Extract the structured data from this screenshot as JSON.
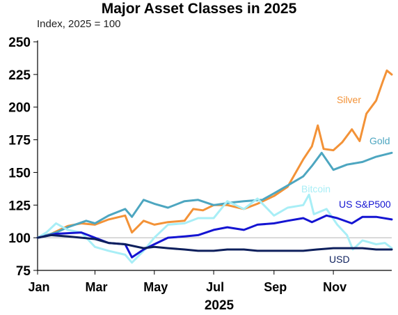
{
  "chart_data": {
    "type": "line",
    "title": "Major Asset Classes in 2025",
    "subtitle": "Index, 2025 = 100",
    "xlabel": "2025",
    "ylabel": "",
    "ylim": [
      75,
      250
    ],
    "yticks": [
      75,
      100,
      125,
      150,
      175,
      200,
      225,
      250
    ],
    "xlim": [
      "2025-01-01",
      "2025-12-31"
    ],
    "xtick_labels": [
      {
        "date": "2025-01-01",
        "label": "Jan"
      },
      {
        "date": "2025-03-01",
        "label": "Mar"
      },
      {
        "date": "2025-05-01",
        "label": "May"
      },
      {
        "date": "2025-07-01",
        "label": "Jul"
      },
      {
        "date": "2025-09-01",
        "label": "Sep"
      },
      {
        "date": "2025-11-01",
        "label": "Nov"
      }
    ],
    "reference_line": 100,
    "grid": false,
    "legend": "inline labels",
    "series": [
      {
        "name": "Silver",
        "color": "#F39237",
        "points": [
          [
            "2025-01-01",
            100
          ],
          [
            "2025-01-15",
            103
          ],
          [
            "2025-02-01",
            109
          ],
          [
            "2025-02-15",
            111
          ],
          [
            "2025-03-01",
            110
          ],
          [
            "2025-03-15",
            114
          ],
          [
            "2025-04-01",
            117
          ],
          [
            "2025-04-08",
            104
          ],
          [
            "2025-04-20",
            113
          ],
          [
            "2025-05-01",
            110
          ],
          [
            "2025-05-15",
            112
          ],
          [
            "2025-06-01",
            113
          ],
          [
            "2025-06-10",
            122
          ],
          [
            "2025-06-20",
            121
          ],
          [
            "2025-07-01",
            125
          ],
          [
            "2025-07-15",
            125
          ],
          [
            "2025-08-01",
            122
          ],
          [
            "2025-08-15",
            126
          ],
          [
            "2025-09-01",
            132
          ],
          [
            "2025-09-15",
            139
          ],
          [
            "2025-10-01",
            160
          ],
          [
            "2025-10-10",
            170
          ],
          [
            "2025-10-16",
            186
          ],
          [
            "2025-10-22",
            168
          ],
          [
            "2025-11-01",
            167
          ],
          [
            "2025-11-10",
            173
          ],
          [
            "2025-11-20",
            183
          ],
          [
            "2025-11-28",
            174
          ],
          [
            "2025-12-05",
            195
          ],
          [
            "2025-12-15",
            205
          ],
          [
            "2025-12-22",
            220
          ],
          [
            "2025-12-26",
            228
          ],
          [
            "2025-12-31",
            225
          ]
        ]
      },
      {
        "name": "Gold",
        "color": "#4DA6C0",
        "points": [
          [
            "2025-01-01",
            100
          ],
          [
            "2025-01-20",
            104
          ],
          [
            "2025-02-01",
            108
          ],
          [
            "2025-02-20",
            113
          ],
          [
            "2025-03-01",
            111
          ],
          [
            "2025-03-15",
            117
          ],
          [
            "2025-04-01",
            122
          ],
          [
            "2025-04-08",
            116
          ],
          [
            "2025-04-20",
            129
          ],
          [
            "2025-05-01",
            126
          ],
          [
            "2025-05-15",
            123
          ],
          [
            "2025-06-01",
            128
          ],
          [
            "2025-06-15",
            129
          ],
          [
            "2025-07-01",
            125
          ],
          [
            "2025-07-20",
            127
          ],
          [
            "2025-08-01",
            128
          ],
          [
            "2025-08-20",
            129
          ],
          [
            "2025-09-01",
            134
          ],
          [
            "2025-09-15",
            140
          ],
          [
            "2025-10-01",
            147
          ],
          [
            "2025-10-10",
            155
          ],
          [
            "2025-10-20",
            165
          ],
          [
            "2025-11-01",
            152
          ],
          [
            "2025-11-15",
            156
          ],
          [
            "2025-12-01",
            158
          ],
          [
            "2025-12-15",
            162
          ],
          [
            "2025-12-31",
            165
          ]
        ]
      },
      {
        "name": "Bitcoin",
        "color": "#A8EEF6",
        "points": [
          [
            "2025-01-01",
            100
          ],
          [
            "2025-01-10",
            104
          ],
          [
            "2025-01-20",
            111
          ],
          [
            "2025-02-01",
            106
          ],
          [
            "2025-02-15",
            104
          ],
          [
            "2025-03-01",
            93
          ],
          [
            "2025-03-15",
            90
          ],
          [
            "2025-04-01",
            87
          ],
          [
            "2025-04-08",
            81
          ],
          [
            "2025-04-20",
            90
          ],
          [
            "2025-05-01",
            100
          ],
          [
            "2025-05-15",
            110
          ],
          [
            "2025-06-01",
            111
          ],
          [
            "2025-06-15",
            115
          ],
          [
            "2025-07-01",
            115
          ],
          [
            "2025-07-15",
            128
          ],
          [
            "2025-08-01",
            122
          ],
          [
            "2025-08-15",
            130
          ],
          [
            "2025-09-01",
            117
          ],
          [
            "2025-09-15",
            123
          ],
          [
            "2025-10-01",
            125
          ],
          [
            "2025-10-07",
            133
          ],
          [
            "2025-10-12",
            118
          ],
          [
            "2025-10-25",
            122
          ],
          [
            "2025-11-05",
            110
          ],
          [
            "2025-11-15",
            102
          ],
          [
            "2025-11-21",
            91
          ],
          [
            "2025-12-01",
            98
          ],
          [
            "2025-12-15",
            95
          ],
          [
            "2025-12-24",
            96
          ],
          [
            "2025-12-31",
            92
          ]
        ]
      },
      {
        "name": "US S&P500",
        "color": "#1414D2",
        "points": [
          [
            "2025-01-01",
            100
          ],
          [
            "2025-01-20",
            103
          ],
          [
            "2025-02-15",
            104
          ],
          [
            "2025-03-01",
            100
          ],
          [
            "2025-03-15",
            96
          ],
          [
            "2025-04-01",
            95
          ],
          [
            "2025-04-08",
            85
          ],
          [
            "2025-04-20",
            91
          ],
          [
            "2025-05-01",
            95
          ],
          [
            "2025-05-15",
            100
          ],
          [
            "2025-06-01",
            101
          ],
          [
            "2025-06-15",
            102
          ],
          [
            "2025-07-01",
            106
          ],
          [
            "2025-07-15",
            108
          ],
          [
            "2025-08-01",
            106
          ],
          [
            "2025-08-15",
            110
          ],
          [
            "2025-09-01",
            111
          ],
          [
            "2025-09-15",
            113
          ],
          [
            "2025-10-01",
            115
          ],
          [
            "2025-10-10",
            112
          ],
          [
            "2025-10-25",
            117
          ],
          [
            "2025-11-05",
            115
          ],
          [
            "2025-11-20",
            111
          ],
          [
            "2025-12-01",
            116
          ],
          [
            "2025-12-15",
            116
          ],
          [
            "2025-12-31",
            114
          ]
        ]
      },
      {
        "name": "USD",
        "color": "#0D1F5C",
        "points": [
          [
            "2025-01-01",
            100
          ],
          [
            "2025-01-15",
            102
          ],
          [
            "2025-02-01",
            101
          ],
          [
            "2025-02-15",
            100
          ],
          [
            "2025-03-01",
            99
          ],
          [
            "2025-03-15",
            96
          ],
          [
            "2025-04-01",
            95
          ],
          [
            "2025-04-20",
            92
          ],
          [
            "2025-05-01",
            93
          ],
          [
            "2025-05-15",
            92
          ],
          [
            "2025-06-01",
            91
          ],
          [
            "2025-06-15",
            90
          ],
          [
            "2025-07-01",
            90
          ],
          [
            "2025-07-15",
            91
          ],
          [
            "2025-08-01",
            91
          ],
          [
            "2025-08-15",
            90
          ],
          [
            "2025-09-01",
            90
          ],
          [
            "2025-09-15",
            90
          ],
          [
            "2025-10-01",
            90
          ],
          [
            "2025-10-15",
            91
          ],
          [
            "2025-11-01",
            92
          ],
          [
            "2025-11-15",
            92
          ],
          [
            "2025-12-01",
            92
          ],
          [
            "2025-12-15",
            91
          ],
          [
            "2025-12-31",
            91
          ]
        ]
      }
    ]
  }
}
